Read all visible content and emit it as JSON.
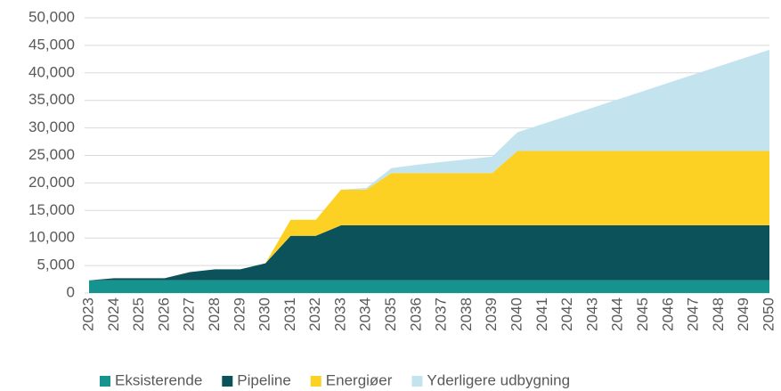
{
  "chart_data": {
    "type": "stacked_area",
    "categories": [
      "2023",
      "2024",
      "2025",
      "2026",
      "2027",
      "2028",
      "2029",
      "2030",
      "2031",
      "2032",
      "2033",
      "2034",
      "2035",
      "2036",
      "2037",
      "2038",
      "2039",
      "2040",
      "2041",
      "2042",
      "2043",
      "2044",
      "2045",
      "2046",
      "2047",
      "2048",
      "2049",
      "2050"
    ],
    "series": [
      {
        "name": "Eksisterende",
        "color": "#14938f",
        "values": [
          2300,
          2300,
          2300,
          2300,
          2300,
          2300,
          2300,
          2300,
          2300,
          2300,
          2300,
          2300,
          2300,
          2300,
          2300,
          2300,
          2300,
          2300,
          2300,
          2300,
          2300,
          2300,
          2300,
          2300,
          2300,
          2300,
          2300,
          2300
        ]
      },
      {
        "name": "Pipeline",
        "color": "#0b525b",
        "values": [
          0,
          400,
          400,
          400,
          1500,
          2000,
          2000,
          3100,
          8100,
          8100,
          10000,
          10000,
          10000,
          10000,
          10000,
          10000,
          10000,
          10000,
          10000,
          10000,
          10000,
          10000,
          10000,
          10000,
          10000,
          10000,
          10000,
          10000
        ]
      },
      {
        "name": "Energiøer",
        "color": "#fdd124",
        "values": [
          0,
          0,
          0,
          0,
          0,
          0,
          0,
          0,
          2900,
          2900,
          6500,
          6500,
          9500,
          9500,
          9500,
          9500,
          9500,
          13500,
          13500,
          13500,
          13500,
          13500,
          13500,
          13500,
          13500,
          13500,
          13500,
          13500
        ]
      },
      {
        "name": "Yderligere udbygning",
        "color": "#c3e4ef",
        "values": [
          0,
          0,
          0,
          0,
          0,
          0,
          0,
          0,
          0,
          0,
          0,
          300,
          900,
          1500,
          2000,
          2500,
          3000,
          3400,
          4900,
          6400,
          7900,
          9400,
          10900,
          12400,
          13900,
          15400,
          16900,
          18400
        ]
      }
    ],
    "ylim": [
      0,
      50000
    ],
    "yticks": [
      0,
      {
        "value": 5000,
        "label": "5,000"
      },
      {
        "value": 10000,
        "label": "10,000"
      },
      {
        "value": 15000,
        "label": "15,000"
      },
      {
        "value": 20000,
        "label": "20,000"
      },
      {
        "value": 25000,
        "label": "25,000"
      },
      {
        "value": 30000,
        "label": "30,000"
      },
      {
        "value": 35000,
        "label": "35,000"
      },
      {
        "value": 40000,
        "label": "40,000"
      },
      {
        "value": 45000,
        "label": "45,000"
      },
      {
        "value": 50000,
        "label": "50,000"
      }
    ],
    "grid": true,
    "legend": "bottom"
  }
}
